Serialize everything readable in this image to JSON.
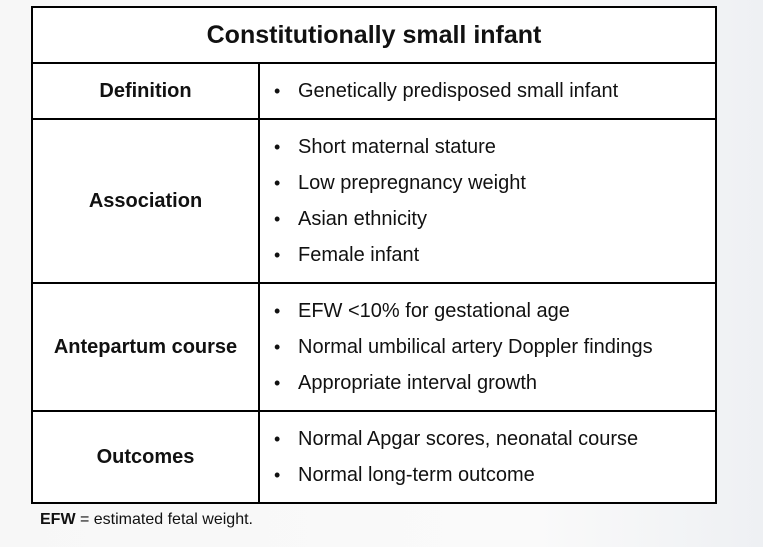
{
  "title": "Constitutionally small infant",
  "rows": [
    {
      "label": "Definition",
      "items": [
        "Genetically predisposed small infant"
      ]
    },
    {
      "label": "Association",
      "items": [
        "Short maternal stature",
        "Low prepregnancy weight",
        "Asian ethnicity",
        "Female infant"
      ]
    },
    {
      "label": "Antepartum course",
      "items": [
        "EFW <10% for gestational age",
        "Normal umbilical artery Doppler findings",
        "Appropriate interval growth"
      ]
    },
    {
      "label": "Outcomes",
      "items": [
        "Normal Apgar scores, neonatal course",
        "Normal long-term outcome"
      ]
    }
  ],
  "footnote": {
    "abbr": "EFW",
    "text": " = estimated fetal weight."
  },
  "bullet_glyph": "•"
}
